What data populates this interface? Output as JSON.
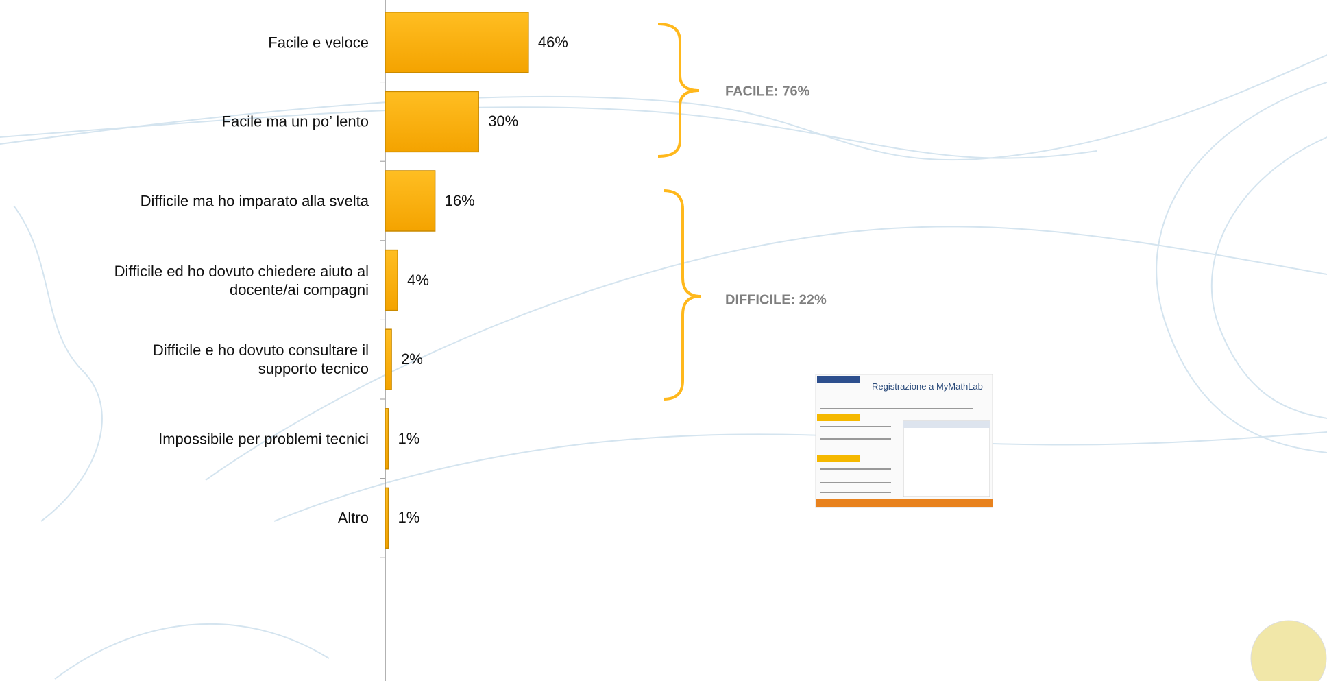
{
  "chart_data": {
    "type": "bar",
    "orientation": "horizontal",
    "categories": [
      "Facile e veloce",
      "Facile ma un po’ lento",
      "Difficile ma ho imparato alla svelta",
      "Difficile ed ho dovuto chiedere aiuto al docente/ai compagni",
      "Difficile e ho dovuto consultare il supporto tecnico",
      "Impossibile per problemi tecnici",
      "Altro"
    ],
    "values": [
      46,
      30,
      16,
      4,
      2,
      1,
      1
    ],
    "value_labels": [
      "46%",
      "30%",
      "16%",
      "4%",
      "2%",
      "1%",
      "1%"
    ],
    "color": "#ffb000",
    "annotations": [
      "FACILE: 76%",
      "DIFFICILE: 22%",
      "Registrazione a MyMathLab"
    ]
  }
}
